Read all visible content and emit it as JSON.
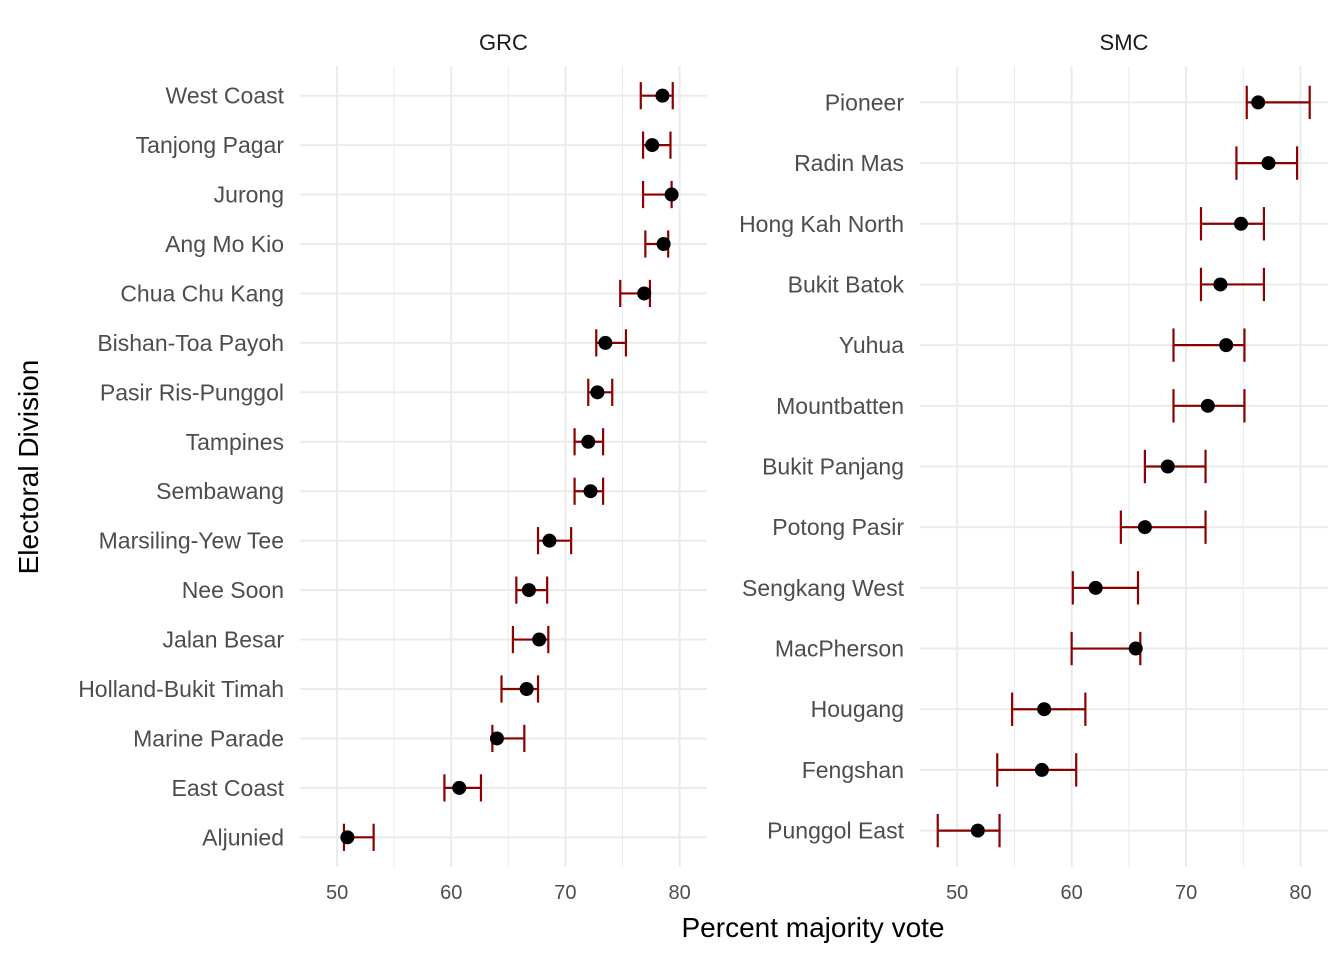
{
  "chart_data": {
    "type": "scatter",
    "subtype": "dot-with-error-bars, faceted",
    "xlabel": "Percent majority vote",
    "ylabel": "Electoral Division",
    "xlim": [
      46.75,
      82.4
    ],
    "xticks": [
      50,
      60,
      70,
      80
    ],
    "grid": true,
    "colors": {
      "point": "#000000",
      "errorbar": "#8b0000",
      "grid": "#ebebeb"
    },
    "panels": [
      {
        "title": "GRC",
        "categories": [
          "West Coast",
          "Tanjong Pagar",
          "Jurong",
          "Ang Mo Kio",
          "Chua Chu Kang",
          "Bishan-Toa Payoh",
          "Pasir Ris-Punggol",
          "Tampines",
          "Sembawang",
          "Marsiling-Yew Tee",
          "Nee Soon",
          "Jalan Besar",
          "Holland-Bukit Timah",
          "Marine Parade",
          "East Coast",
          "Aljunied"
        ],
        "values": [
          78.5,
          77.6,
          79.3,
          78.6,
          76.9,
          73.5,
          72.8,
          72.0,
          72.2,
          68.6,
          66.8,
          67.7,
          66.6,
          64.0,
          60.7,
          50.9
        ],
        "lower": [
          76.6,
          76.8,
          76.8,
          77.0,
          74.8,
          72.7,
          72.0,
          70.8,
          70.8,
          67.6,
          65.7,
          65.4,
          64.4,
          63.6,
          59.4,
          50.6
        ],
        "upper": [
          79.4,
          79.2,
          79.3,
          79.0,
          77.4,
          75.3,
          74.1,
          73.3,
          73.3,
          70.5,
          68.4,
          68.5,
          67.6,
          66.4,
          62.6,
          53.2
        ]
      },
      {
        "title": "SMC",
        "categories": [
          "Pioneer",
          "Radin Mas",
          "Hong Kah North",
          "Bukit Batok",
          "Yuhua",
          "Mountbatten",
          "Bukit Panjang",
          "Potong Pasir",
          "Sengkang West",
          "MacPherson",
          "Hougang",
          "Fengshan",
          "Punggol East"
        ],
        "values": [
          76.3,
          77.2,
          74.8,
          73.0,
          73.5,
          71.9,
          68.4,
          66.4,
          62.1,
          65.6,
          57.6,
          57.4,
          51.8
        ],
        "lower": [
          75.3,
          74.4,
          71.3,
          71.3,
          68.9,
          68.9,
          66.4,
          64.3,
          60.1,
          60.0,
          54.8,
          53.5,
          48.3
        ],
        "upper": [
          80.8,
          79.7,
          76.8,
          76.8,
          75.1,
          75.1,
          71.7,
          71.7,
          65.8,
          66.0,
          61.2,
          60.4,
          53.7
        ]
      }
    ]
  }
}
